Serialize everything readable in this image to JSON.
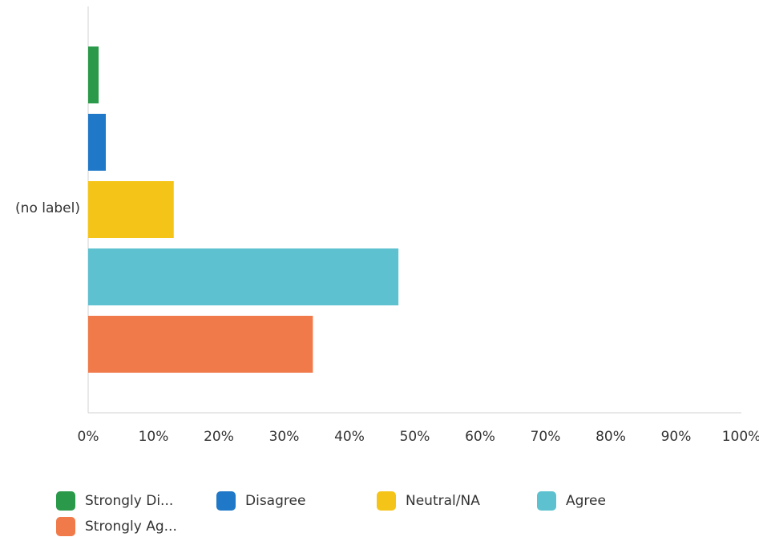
{
  "chart_data": {
    "type": "bar",
    "orientation": "horizontal",
    "title": "",
    "xlabel": "",
    "ylabel": "",
    "categories": [
      "(no label)"
    ],
    "xlim": [
      0,
      100
    ],
    "x_ticks": [
      "0%",
      "10%",
      "20%",
      "30%",
      "40%",
      "50%",
      "60%",
      "70%",
      "80%",
      "90%",
      "100%"
    ],
    "grid": false,
    "legend_position": "bottom",
    "series": [
      {
        "name": "Strongly Di...",
        "color": "#2a9a4a",
        "values": [
          1.6
        ]
      },
      {
        "name": "Disagree",
        "color": "#1f78c8",
        "values": [
          2.7
        ]
      },
      {
        "name": "Neutral/NA",
        "color": "#f4c518",
        "values": [
          13.1
        ]
      },
      {
        "name": "Agree",
        "color": "#5ec1cf",
        "values": [
          47.5
        ]
      },
      {
        "name": "Strongly Ag...",
        "color": "#f07a4a",
        "values": [
          34.4
        ]
      }
    ]
  }
}
